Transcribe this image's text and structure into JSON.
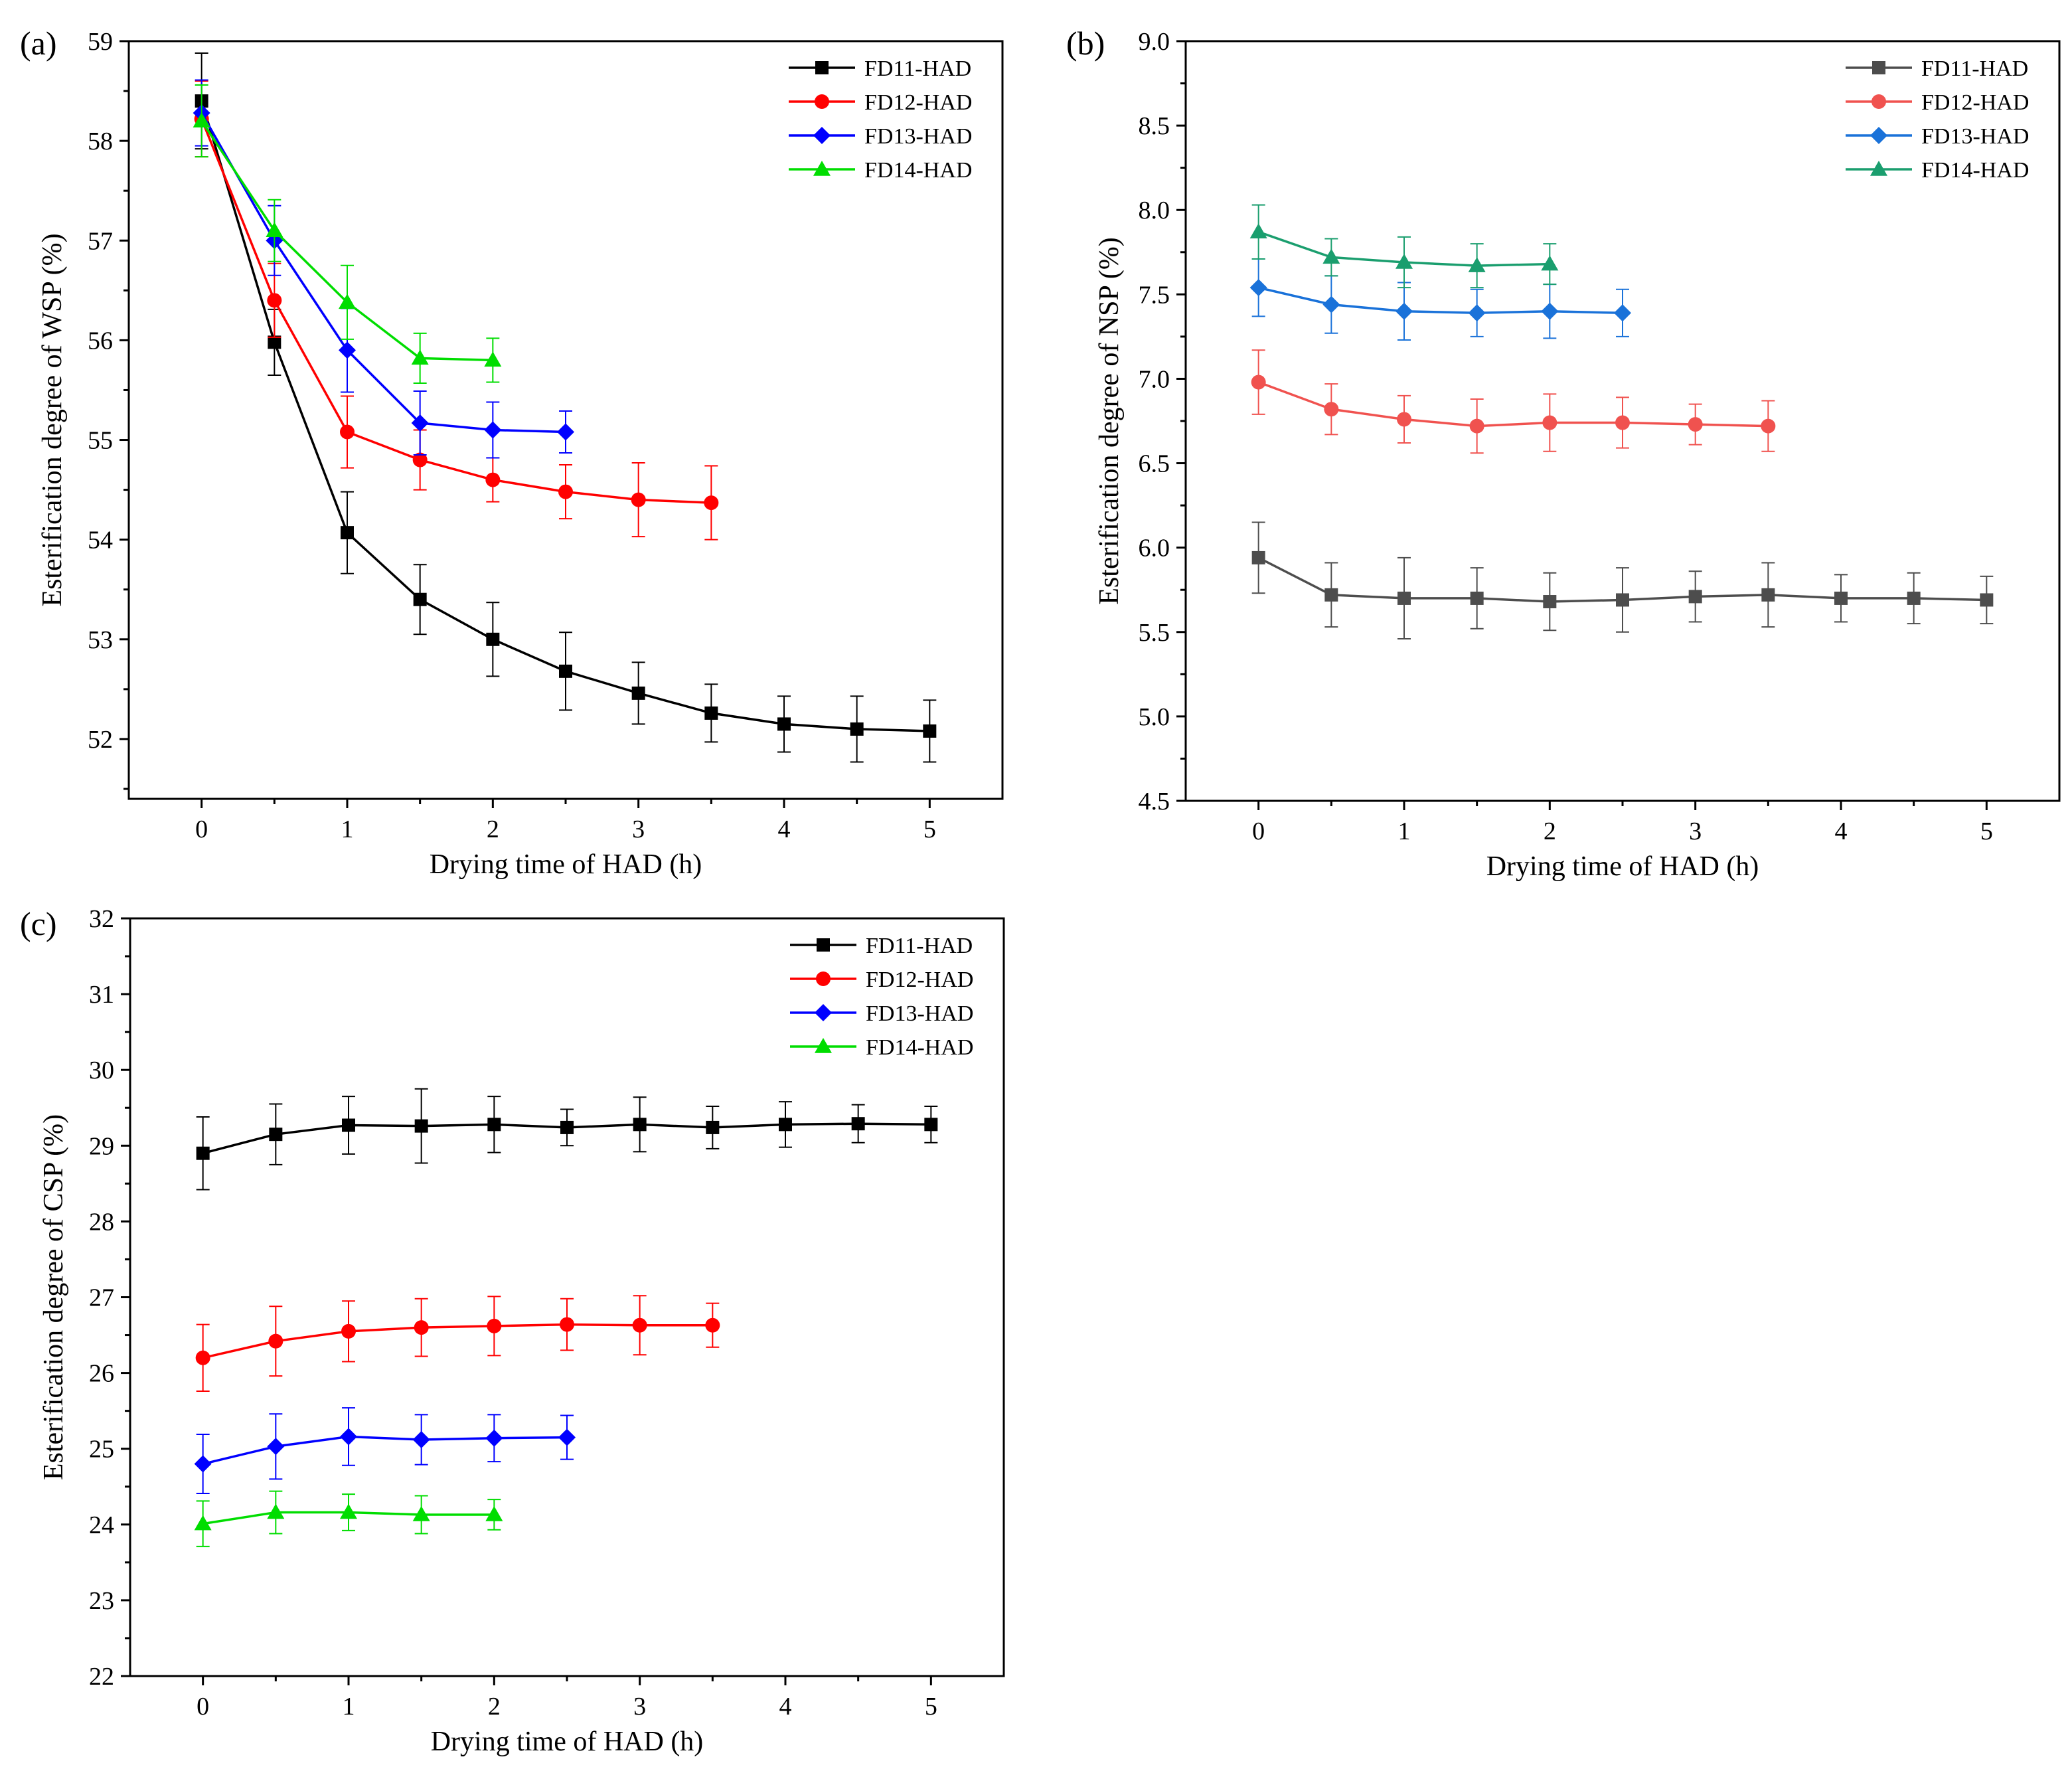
{
  "chart_data": [
    {
      "panel_label": "(a)",
      "type": "line",
      "xlabel": "Drying time of HAD (h)",
      "ylabel": "Esterification degree of WSP (%)",
      "xlim": [
        -0.5,
        5.5
      ],
      "ylim": [
        51.4,
        59
      ],
      "xticks": [
        0,
        1,
        2,
        3,
        4,
        5
      ],
      "yticks": [
        52,
        53,
        54,
        55,
        56,
        57,
        58,
        59
      ],
      "legend_position": "top-right",
      "series": [
        {
          "name": "FD11-HAD",
          "color": "#000000",
          "marker": "square",
          "x": [
            0,
            0.5,
            1,
            1.5,
            2,
            2.5,
            3,
            3.5,
            4,
            4.5,
            5
          ],
          "values": [
            58.4,
            55.98,
            54.07,
            53.4,
            53.0,
            52.68,
            52.46,
            52.26,
            52.15,
            52.1,
            52.08
          ],
          "errors": [
            0.48,
            0.33,
            0.41,
            0.35,
            0.37,
            0.39,
            0.31,
            0.29,
            0.28,
            0.33,
            0.31
          ]
        },
        {
          "name": "FD12-HAD",
          "color": "#ff0000",
          "marker": "circle",
          "x": [
            0,
            0.5,
            1,
            1.5,
            2,
            2.5,
            3,
            3.5
          ],
          "values": [
            58.22,
            56.4,
            55.08,
            54.8,
            54.6,
            54.48,
            54.4,
            54.37
          ],
          "errors": [
            0.38,
            0.37,
            0.36,
            0.3,
            0.22,
            0.27,
            0.37,
            0.37
          ]
        },
        {
          "name": "FD13-HAD",
          "color": "#0000ff",
          "marker": "diamond",
          "x": [
            0,
            0.5,
            1,
            1.5,
            2,
            2.5
          ],
          "values": [
            58.28,
            57.0,
            55.9,
            55.17,
            55.1,
            55.08
          ],
          "errors": [
            0.33,
            0.35,
            0.42,
            0.32,
            0.28,
            0.21
          ]
        },
        {
          "name": "FD14-HAD",
          "color": "#00dd00",
          "marker": "triangle",
          "x": [
            0,
            0.5,
            1,
            1.5,
            2
          ],
          "values": [
            58.2,
            57.1,
            56.38,
            55.82,
            55.8
          ],
          "errors": [
            0.36,
            0.31,
            0.37,
            0.25,
            0.22
          ]
        }
      ]
    },
    {
      "panel_label": "(b)",
      "type": "line",
      "xlabel": "Drying time of HAD (h)",
      "ylabel": "Esterification degree of NSP (%)",
      "xlim": [
        -0.5,
        5.5
      ],
      "ylim": [
        4.5,
        9.0
      ],
      "xticks": [
        0,
        1,
        2,
        3,
        4,
        5
      ],
      "yticks": [
        4.5,
        5.0,
        5.5,
        6.0,
        6.5,
        7.0,
        7.5,
        8.0,
        8.5,
        9.0
      ],
      "ytick_labels": [
        "4.5",
        "5.0",
        "5.5",
        "6.0",
        "6.5",
        "7.0",
        "7.5",
        "8.0",
        "8.5",
        "9.0"
      ],
      "legend_position": "top-right",
      "series": [
        {
          "name": "FD11-HAD",
          "color": "#4d4d4d",
          "marker": "square",
          "x": [
            0,
            0.5,
            1,
            1.5,
            2,
            2.5,
            3,
            3.5,
            4,
            4.5,
            5
          ],
          "values": [
            5.94,
            5.72,
            5.7,
            5.7,
            5.68,
            5.69,
            5.71,
            5.72,
            5.7,
            5.7,
            5.69
          ],
          "errors": [
            0.21,
            0.19,
            0.24,
            0.18,
            0.17,
            0.19,
            0.15,
            0.19,
            0.14,
            0.15,
            0.14
          ]
        },
        {
          "name": "FD12-HAD",
          "color": "#f0524f",
          "marker": "circle",
          "x": [
            0,
            0.5,
            1,
            1.5,
            2,
            2.5,
            3,
            3.5
          ],
          "values": [
            6.98,
            6.82,
            6.76,
            6.72,
            6.74,
            6.74,
            6.73,
            6.72
          ],
          "errors": [
            0.19,
            0.15,
            0.14,
            0.16,
            0.17,
            0.15,
            0.12,
            0.15
          ]
        },
        {
          "name": "FD13-HAD",
          "color": "#1a72d9",
          "marker": "diamond",
          "x": [
            0,
            0.5,
            1,
            1.5,
            2,
            2.5
          ],
          "values": [
            7.54,
            7.44,
            7.4,
            7.39,
            7.4,
            7.39
          ],
          "errors": [
            0.17,
            0.17,
            0.17,
            0.14,
            0.16,
            0.14
          ]
        },
        {
          "name": "FD14-HAD",
          "color": "#1a9e6e",
          "marker": "triangle",
          "x": [
            0,
            0.5,
            1,
            1.5,
            2
          ],
          "values": [
            7.87,
            7.72,
            7.69,
            7.67,
            7.68
          ],
          "errors": [
            0.16,
            0.11,
            0.15,
            0.13,
            0.12
          ]
        }
      ]
    },
    {
      "panel_label": "(c)",
      "type": "line",
      "xlabel": "Drying time of HAD (h)",
      "ylabel": "Esterification degree of CSP (%)",
      "xlim": [
        -0.5,
        5.5
      ],
      "ylim": [
        22,
        32
      ],
      "xticks": [
        0,
        1,
        2,
        3,
        4,
        5
      ],
      "yticks": [
        22,
        23,
        24,
        25,
        26,
        27,
        28,
        29,
        30,
        31,
        32
      ],
      "legend_position": "top-right",
      "series": [
        {
          "name": "FD11-HAD",
          "color": "#000000",
          "marker": "square",
          "x": [
            0,
            0.5,
            1,
            1.5,
            2,
            2.5,
            3,
            3.5,
            4,
            4.5,
            5
          ],
          "values": [
            28.9,
            29.15,
            29.27,
            29.26,
            29.28,
            29.24,
            29.28,
            29.24,
            29.28,
            29.29,
            29.28
          ],
          "errors": [
            0.48,
            0.4,
            0.38,
            0.49,
            0.37,
            0.24,
            0.36,
            0.28,
            0.3,
            0.25,
            0.24
          ]
        },
        {
          "name": "FD12-HAD",
          "color": "#ff0000",
          "marker": "circle",
          "x": [
            0,
            0.5,
            1,
            1.5,
            2,
            2.5,
            3,
            3.5
          ],
          "values": [
            26.2,
            26.42,
            26.55,
            26.6,
            26.62,
            26.64,
            26.63,
            26.63
          ],
          "errors": [
            0.44,
            0.46,
            0.4,
            0.38,
            0.39,
            0.34,
            0.39,
            0.29
          ]
        },
        {
          "name": "FD13-HAD",
          "color": "#0000ff",
          "marker": "diamond",
          "x": [
            0,
            0.5,
            1,
            1.5,
            2,
            2.5
          ],
          "values": [
            24.8,
            25.03,
            25.16,
            25.12,
            25.14,
            25.15
          ],
          "errors": [
            0.39,
            0.43,
            0.38,
            0.33,
            0.31,
            0.29
          ]
        },
        {
          "name": "FD14-HAD",
          "color": "#00dd00",
          "marker": "triangle",
          "x": [
            0,
            0.5,
            1,
            1.5,
            2
          ],
          "values": [
            24.01,
            24.16,
            24.16,
            24.13,
            24.13
          ],
          "errors": [
            0.3,
            0.28,
            0.24,
            0.25,
            0.2
          ]
        }
      ]
    }
  ]
}
